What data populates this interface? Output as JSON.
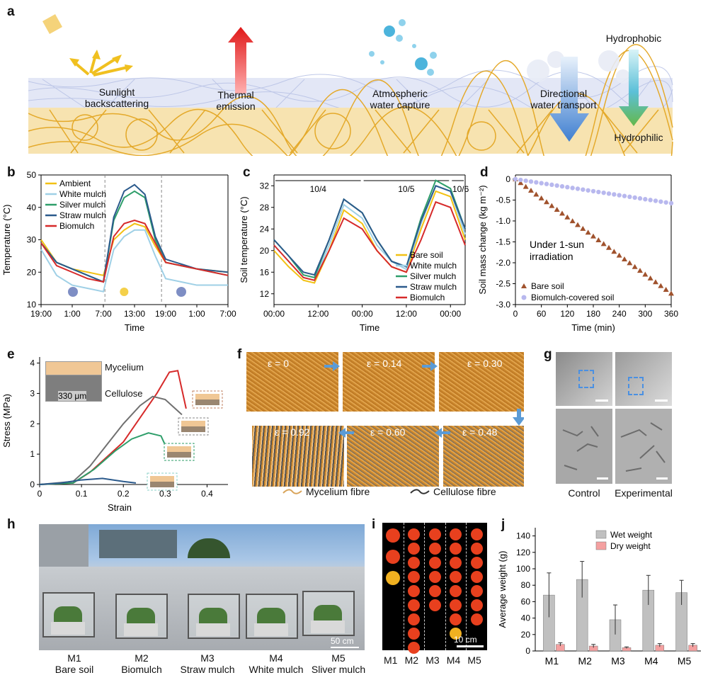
{
  "panels": {
    "a": "a",
    "b": "b",
    "c": "c",
    "d": "d",
    "e": "e",
    "f": "f",
    "g": "g",
    "h": "h",
    "i": "i",
    "j": "j"
  },
  "panel_a": {
    "labels": [
      {
        "line1": "Sunlight",
        "line2": "backscattering"
      },
      {
        "line1": "Thermal",
        "line2": "emission"
      },
      {
        "line1": "Atmospheric",
        "line2": "water capture"
      },
      {
        "line1": "Directional",
        "line2": "water transport"
      }
    ],
    "hydrophobic": "Hydrophobic",
    "hydrophilic": "Hydrophilic"
  },
  "chart_data": [
    {
      "panel": "b",
      "type": "line",
      "xlabel": "Time",
      "ylabel": "Temperature (°C)",
      "x_ticks": [
        "19:00",
        "1:00",
        "7:00",
        "13:00",
        "19:00",
        "1:00",
        "7:00"
      ],
      "ylim": [
        10,
        50
      ],
      "y_ticks": [
        10,
        20,
        30,
        40,
        50
      ],
      "x": [
        0,
        3,
        6,
        9,
        12,
        14,
        16,
        18,
        20,
        22,
        24,
        30,
        36
      ],
      "series": [
        {
          "name": "Ambient",
          "color": "#f2c114",
          "values": [
            30,
            23,
            21,
            20,
            19,
            30,
            33,
            35,
            34,
            28,
            23,
            21,
            20
          ]
        },
        {
          "name": "White mulch",
          "color": "#9fd0e6",
          "values": [
            27,
            19,
            16,
            15,
            14,
            27,
            31,
            33,
            33,
            25,
            18,
            16,
            16
          ]
        },
        {
          "name": "Silver mulch",
          "color": "#2e9e6a",
          "values": [
            29,
            23,
            21,
            19,
            17,
            36,
            43,
            45,
            43,
            30,
            23,
            21,
            19
          ]
        },
        {
          "name": "Straw mulch",
          "color": "#2b5a8c",
          "values": [
            29,
            23,
            21,
            19,
            17,
            37,
            45,
            47,
            44,
            31,
            24,
            21,
            20
          ]
        },
        {
          "name": "Biomulch",
          "color": "#d62a2a",
          "values": [
            29,
            22,
            20,
            18,
            17,
            31,
            35,
            36,
            35,
            29,
            23,
            21,
            19
          ]
        }
      ]
    },
    {
      "panel": "c",
      "type": "line",
      "xlabel": "Time",
      "ylabel": "Soil temperature (°C)",
      "x_ticks": [
        "00:00",
        "12:00",
        "00:00",
        "12:00",
        "00:00"
      ],
      "ylim": [
        10,
        34
      ],
      "y_ticks": [
        12,
        16,
        20,
        24,
        28,
        32
      ],
      "day_labels": [
        "10/4",
        "10/5",
        "10/6"
      ],
      "x": [
        0,
        4,
        8,
        11,
        15,
        19,
        24,
        28,
        32,
        36,
        40,
        44,
        48,
        52
      ],
      "series": [
        {
          "name": "Bare soil",
          "color": "#f2c114",
          "values": [
            20,
            17,
            14.5,
            14,
            20,
            27.5,
            25,
            20,
            17,
            16,
            24,
            31,
            30,
            22
          ]
        },
        {
          "name": "White mulch",
          "color": "#9fd0e6",
          "values": [
            21,
            18,
            15,
            14.5,
            21,
            28.5,
            26,
            21,
            18,
            16.5,
            25,
            32,
            31,
            23
          ]
        },
        {
          "name": "Silver mulch",
          "color": "#2e9e6a",
          "values": [
            22,
            19,
            15.5,
            15,
            22,
            29.5,
            27,
            22,
            18,
            17,
            26,
            33,
            31.5,
            24
          ]
        },
        {
          "name": "Straw mulch",
          "color": "#2b5a8c",
          "values": [
            22,
            19,
            16,
            15.5,
            22,
            29.5,
            27,
            22,
            18,
            17,
            25.5,
            32,
            31,
            24
          ]
        },
        {
          "name": "Biomulch",
          "color": "#d62a2a",
          "values": [
            21,
            18,
            15,
            14.5,
            20,
            26,
            24,
            20,
            17,
            16,
            22,
            29,
            28,
            21
          ]
        }
      ]
    },
    {
      "panel": "d",
      "type": "scatter",
      "xlabel": "Time (min)",
      "ylabel": "Soil mass change (kg m⁻²)",
      "xlim": [
        0,
        360
      ],
      "x_ticks": [
        0,
        60,
        120,
        180,
        240,
        300,
        360
      ],
      "ylim": [
        -3.0,
        0.1
      ],
      "y_ticks": [
        0,
        -0.5,
        -1.0,
        -1.5,
        -2.0,
        -2.5,
        -3.0
      ],
      "annotation": "Under 1-sun irradiation",
      "series": [
        {
          "name": "Bare soil",
          "color": "#a0522d",
          "marker": "triangle",
          "slope": -0.0076
        },
        {
          "name": "Biomulch-covered soil",
          "color": "#b8b8ee",
          "marker": "circle",
          "slope": -0.0016
        }
      ]
    },
    {
      "panel": "e",
      "type": "line",
      "xlabel": "Strain",
      "ylabel": "Stress (MPa)",
      "xlim": [
        0,
        0.45
      ],
      "x_ticks": [
        0,
        0.1,
        0.2,
        0.3,
        0.4
      ],
      "ylim": [
        0,
        4.2
      ],
      "y_ticks": [
        0,
        1,
        2,
        3,
        4
      ],
      "series": [
        {
          "color": "#d62a2a",
          "points": [
            [
              0,
              0
            ],
            [
              0.08,
              0.05
            ],
            [
              0.12,
              0.4
            ],
            [
              0.16,
              0.9
            ],
            [
              0.2,
              1.4
            ],
            [
              0.24,
              2.2
            ],
            [
              0.28,
              3.0
            ],
            [
              0.31,
              3.7
            ],
            [
              0.33,
              3.75
            ],
            [
              0.35,
              2.5
            ]
          ]
        },
        {
          "color": "#707070",
          "points": [
            [
              0,
              0
            ],
            [
              0.08,
              0.1
            ],
            [
              0.12,
              0.6
            ],
            [
              0.16,
              1.3
            ],
            [
              0.2,
              2.0
            ],
            [
              0.24,
              2.6
            ],
            [
              0.27,
              2.9
            ],
            [
              0.3,
              2.8
            ],
            [
              0.34,
              2.3
            ]
          ]
        },
        {
          "color": "#2e9e6a",
          "points": [
            [
              0,
              0
            ],
            [
              0.08,
              0.05
            ],
            [
              0.13,
              0.5
            ],
            [
              0.18,
              1.1
            ],
            [
              0.22,
              1.5
            ],
            [
              0.26,
              1.7
            ],
            [
              0.29,
              1.6
            ],
            [
              0.3,
              1.3
            ]
          ]
        },
        {
          "color": "#2b5a8c",
          "points": [
            [
              0,
              0
            ],
            [
              0.05,
              0.05
            ],
            [
              0.1,
              0.15
            ],
            [
              0.15,
              0.2
            ],
            [
              0.2,
              0.1
            ],
            [
              0.23,
              0.05
            ]
          ]
        }
      ]
    },
    {
      "panel": "j",
      "type": "bar",
      "xlabel": "",
      "ylabel": "Average weight (g)",
      "categories": [
        "M1",
        "M2",
        "M3",
        "M4",
        "M5"
      ],
      "ylim": [
        0,
        150
      ],
      "y_ticks": [
        0,
        20,
        40,
        60,
        80,
        100,
        120,
        140
      ],
      "series": [
        {
          "name": "Wet weight",
          "color": "#c0c0c0",
          "values": [
            68,
            87,
            38,
            74,
            71
          ],
          "err": [
            27,
            22,
            18,
            18,
            15
          ]
        },
        {
          "name": "Dry weight",
          "color": "#f4a0a0",
          "values": [
            8,
            6,
            4,
            7,
            7
          ],
          "err": [
            2,
            2,
            1,
            2,
            2
          ]
        }
      ]
    }
  ],
  "panel_e": {
    "layer_top": "Mycelium",
    "layer_bottom": "Cellulose",
    "thickness": "330 μm"
  },
  "panel_f": {
    "strains": [
      "ε = 0",
      "ε = 0.14",
      "ε = 0.30",
      "ε = 0.92",
      "ε = 0.60",
      "ε = 0.48"
    ],
    "legend_mycelium": "Mycelium fibre",
    "legend_cellulose": "Cellulose fibre"
  },
  "panel_g": {
    "control": "Control",
    "experimental": "Experimental"
  },
  "panel_h": {
    "scale": "50 cm",
    "plots": [
      {
        "id": "M1",
        "name": "Bare soil"
      },
      {
        "id": "M2",
        "name": "Biomulch"
      },
      {
        "id": "M3",
        "name": "Straw mulch"
      },
      {
        "id": "M4",
        "name": "White mulch"
      },
      {
        "id": "M5",
        "name": "Sliver mulch"
      }
    ]
  },
  "panel_i": {
    "scale": "10 cm",
    "columns": [
      "M1",
      "M2",
      "M3",
      "M4",
      "M5"
    ],
    "fruit_counts": [
      3,
      9,
      6,
      8,
      7
    ]
  },
  "colors": {
    "mycelium": "#e4a92a",
    "cellulose_mesh": "#b9c3e6",
    "sky": "#7fa9d6"
  }
}
